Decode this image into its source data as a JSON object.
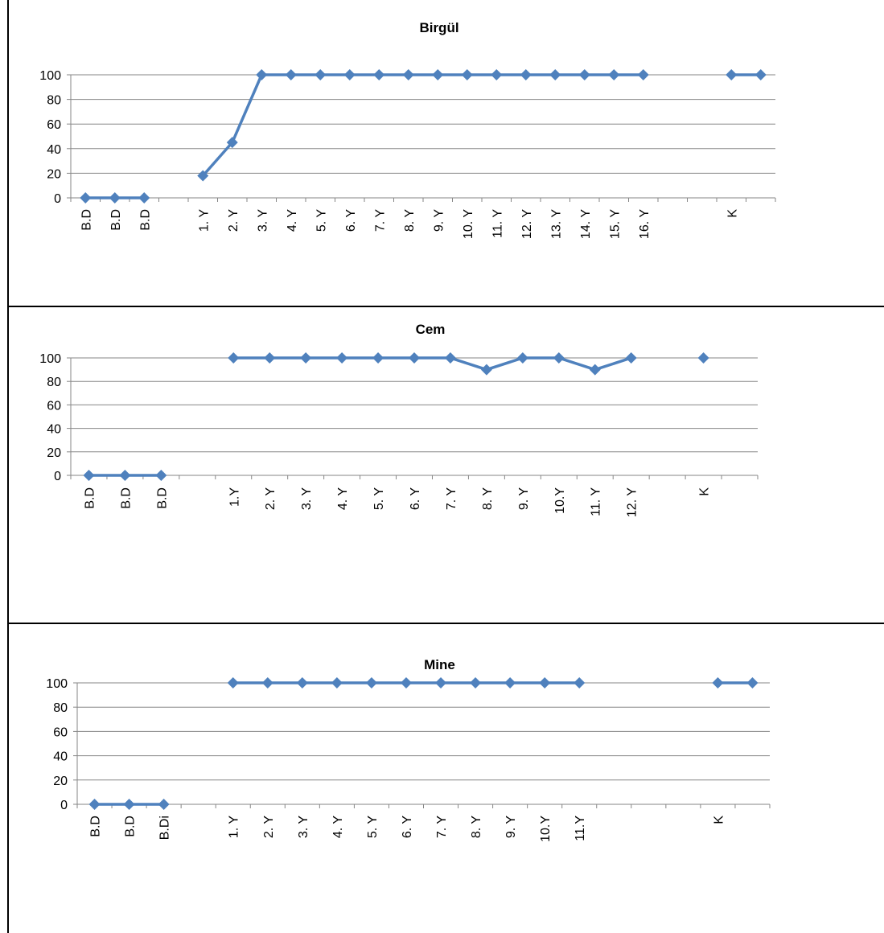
{
  "chart_data": [
    {
      "type": "line",
      "title": "Birgül",
      "ylim": [
        0,
        100
      ],
      "yticks": [
        0,
        20,
        40,
        60,
        80,
        100
      ],
      "grid": true,
      "legend": "none",
      "color": "#4f81bd",
      "categories": [
        "B.D",
        "B.D",
        "B.D",
        "",
        "1. Y",
        "2. Y",
        "3. Y",
        "4. Y",
        "5. Y",
        "6. Y",
        "7. Y",
        "8. Y",
        "9. Y",
        "10. Y",
        "11. Y",
        "12. Y",
        "13. Y",
        "14. Y",
        "15. Y",
        "16. Y",
        "",
        "",
        "K",
        ""
      ],
      "values": [
        0,
        0,
        0,
        null,
        18,
        45,
        100,
        100,
        100,
        100,
        100,
        100,
        100,
        100,
        100,
        100,
        100,
        100,
        100,
        100,
        null,
        null,
        100,
        100
      ]
    },
    {
      "type": "line",
      "title": "Cem",
      "ylim": [
        0,
        100
      ],
      "yticks": [
        0,
        20,
        40,
        60,
        80,
        100
      ],
      "grid": true,
      "legend": "none",
      "color": "#4f81bd",
      "categories": [
        "B.D",
        "B.D",
        "B.D",
        "",
        "1.Y",
        "2. Y",
        "3. Y",
        "4. Y",
        "5. Y",
        "6. Y",
        "7. Y",
        "8. Y",
        "9. Y",
        "10.Y",
        "11. Y",
        "12. Y",
        "",
        "K",
        ""
      ],
      "values": [
        0,
        0,
        0,
        null,
        100,
        100,
        100,
        100,
        100,
        100,
        100,
        90,
        100,
        100,
        90,
        100,
        null,
        100,
        null
      ]
    },
    {
      "type": "line",
      "title": "Mine",
      "ylim": [
        0,
        100
      ],
      "yticks": [
        0,
        20,
        40,
        60,
        80,
        100
      ],
      "grid": true,
      "legend": "none",
      "color": "#4f81bd",
      "categories": [
        "B.D",
        "B.D",
        "B.Di",
        "",
        "1. Y",
        "2. Y",
        "3. Y",
        "4. Y",
        "5. Y",
        "6. Y",
        "7. Y",
        "8. Y",
        "9. Y",
        "10.Y",
        "11.Y",
        "",
        "",
        "",
        "K",
        ""
      ],
      "values": [
        0,
        0,
        0,
        null,
        100,
        100,
        100,
        100,
        100,
        100,
        100,
        100,
        100,
        100,
        100,
        null,
        null,
        null,
        100,
        100
      ]
    }
  ]
}
